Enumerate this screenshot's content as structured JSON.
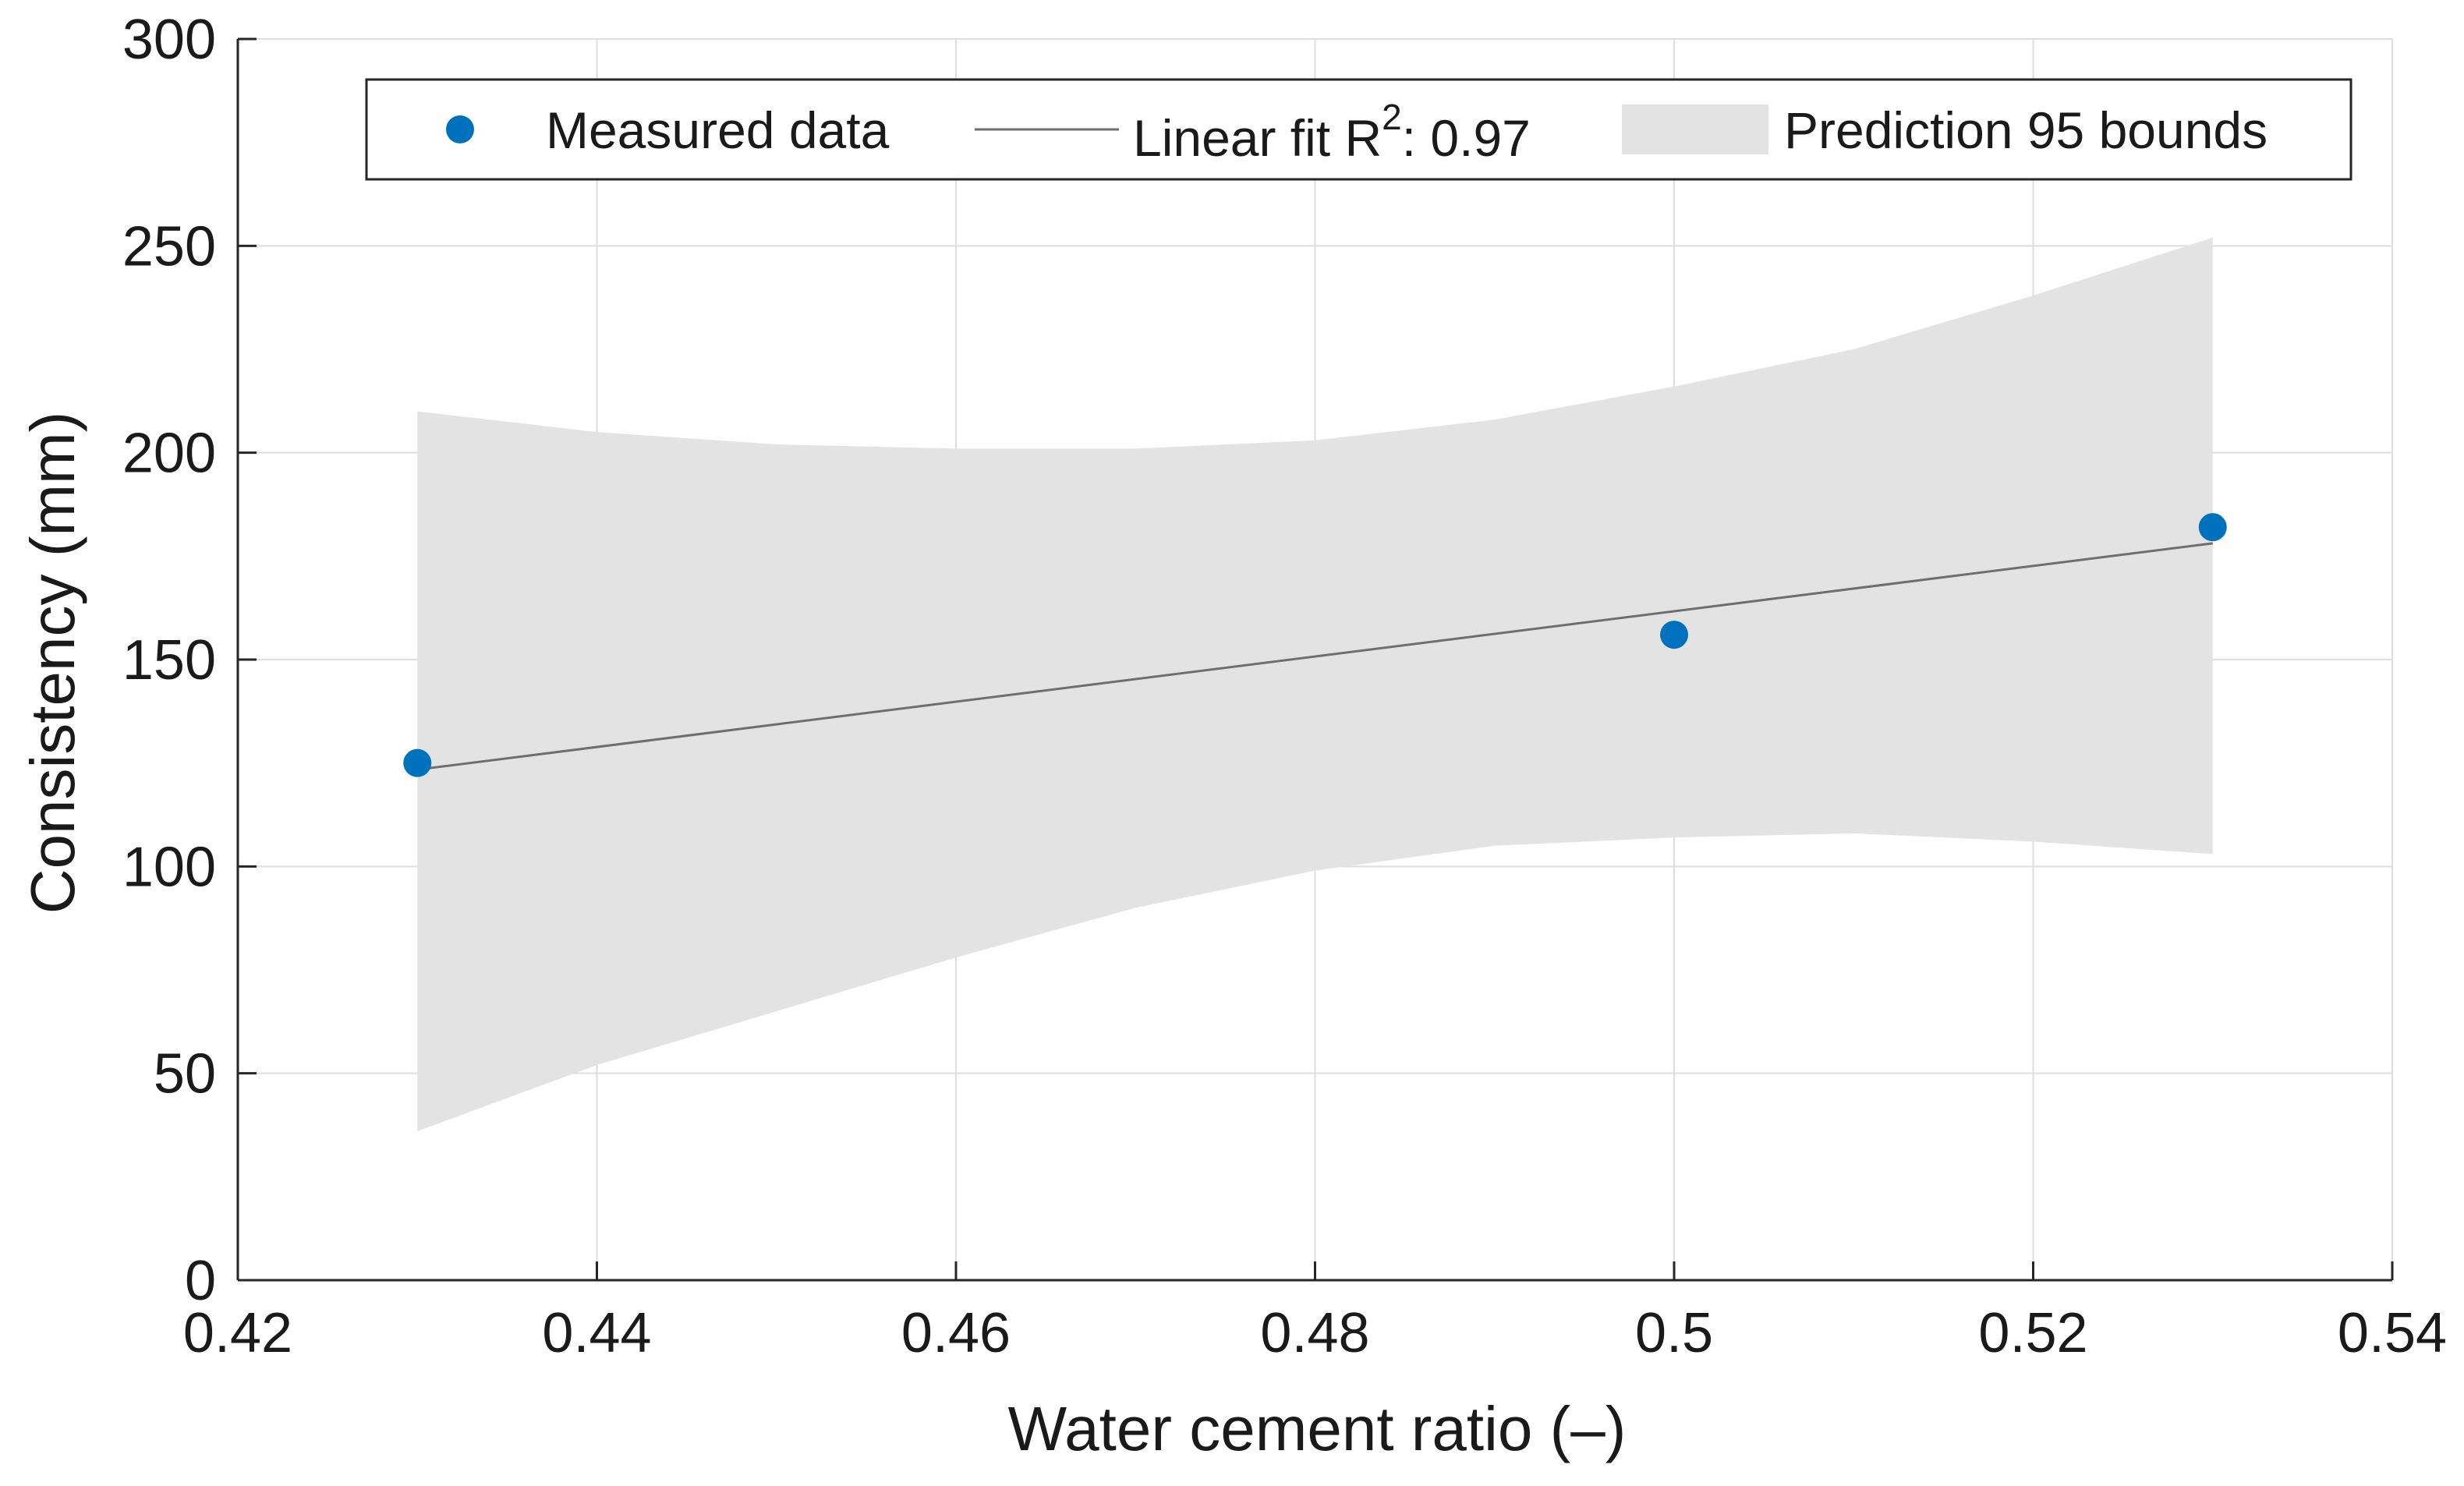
{
  "chart_data": {
    "type": "scatter",
    "title": "",
    "xlabel": "Water cement ratio (–)",
    "ylabel": "Consistency (mm)",
    "xlim": [
      0.42,
      0.54
    ],
    "ylim": [
      0,
      300
    ],
    "xticks": [
      0.42,
      0.44,
      0.46,
      0.48,
      0.5,
      0.52,
      0.54
    ],
    "xtick_labels": [
      "0.42",
      "0.44",
      "0.46",
      "0.48",
      "0.5",
      "0.52",
      "0.54"
    ],
    "yticks": [
      0,
      50,
      100,
      150,
      200,
      250,
      300
    ],
    "ytick_labels": [
      "0",
      "50",
      "100",
      "150",
      "200",
      "250",
      "300"
    ],
    "grid": true,
    "legend_position": "top",
    "series": [
      {
        "name": "Measured data",
        "kind": "scatter",
        "color": "#0072BD",
        "x": [
          0.43,
          0.5,
          0.53
        ],
        "y": [
          125,
          156,
          182
        ]
      },
      {
        "name": "Linear fit",
        "kind": "line",
        "color": "#6e6e6e",
        "x": [
          0.43,
          0.53
        ],
        "y": [
          123.4,
          178.1
        ]
      },
      {
        "name": "Prediction 95 bounds",
        "kind": "band",
        "color": "#e3e3e3",
        "x": [
          0.43,
          0.44,
          0.45,
          0.46,
          0.47,
          0.48,
          0.49,
          0.5,
          0.51,
          0.52,
          0.53
        ],
        "upper": [
          210,
          205,
          202,
          201,
          201,
          203,
          208,
          216,
          225,
          238,
          252
        ],
        "lower": [
          36,
          52,
          65,
          78,
          90,
          99,
          105,
          107,
          108,
          106,
          103
        ]
      }
    ],
    "legend": {
      "measured_label": "Measured data",
      "fit_label_prefix": "Linear fit R",
      "fit_label_sup": "2",
      "fit_label_suffix": ": 0.97",
      "bounds_label": "Prediction 95 bounds"
    }
  }
}
